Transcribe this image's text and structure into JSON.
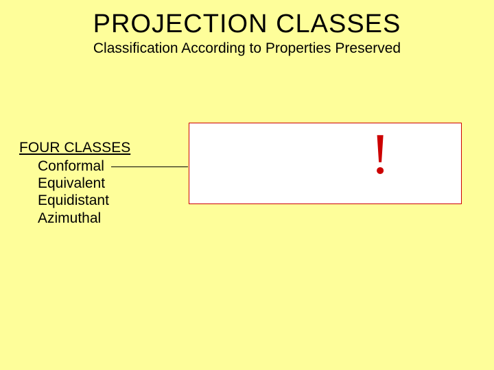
{
  "title": "PROJECTION CLASSES",
  "subtitle": "Classification According to Properties Preserved",
  "section": {
    "heading": "FOUR CLASSES",
    "items": [
      "Conformal",
      "Equivalent",
      "Equidistant",
      "Azimuthal"
    ]
  },
  "callout": {
    "symbol": "!",
    "box_border_color": "#cc0000",
    "box_background": "#ffffff",
    "symbol_color": "#cc0000"
  },
  "colors": {
    "background": "#fefe9a",
    "text": "#000000"
  }
}
